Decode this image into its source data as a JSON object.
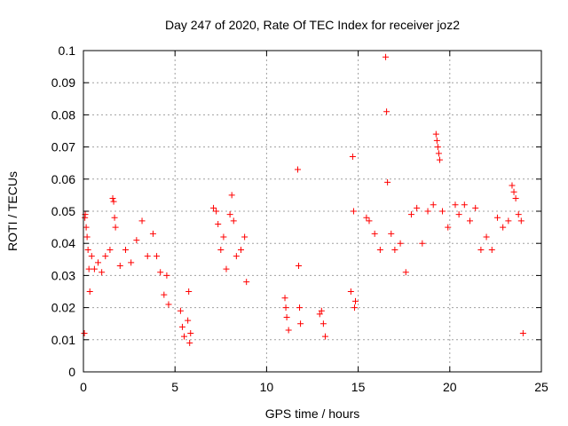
{
  "chart_data": {
    "type": "scatter",
    "title": "Day 247 of 2020, Rate Of TEC Index for receiver joz2",
    "xlabel": "GPS time / hours",
    "ylabel": "ROTI / TECUs",
    "xlim": [
      0,
      25
    ],
    "ylim": [
      0,
      0.1
    ],
    "xticks": [
      "0",
      "5",
      "10",
      "15",
      "20",
      "25"
    ],
    "yticks": [
      "0",
      "0.01",
      "0.02",
      "0.03",
      "0.04",
      "0.05",
      "0.06",
      "0.07",
      "0.08",
      "0.09",
      "0.1"
    ],
    "grid": true,
    "marker": "+",
    "color": "#ff0000",
    "series": [
      {
        "points": [
          [
            0.05,
            0.012
          ],
          [
            0.08,
            0.048
          ],
          [
            0.1,
            0.049
          ],
          [
            0.15,
            0.045
          ],
          [
            0.2,
            0.042
          ],
          [
            0.25,
            0.038
          ],
          [
            0.3,
            0.032
          ],
          [
            0.35,
            0.025
          ],
          [
            0.45,
            0.036
          ],
          [
            0.6,
            0.032
          ],
          [
            0.8,
            0.034
          ],
          [
            1.0,
            0.031
          ],
          [
            1.2,
            0.036
          ],
          [
            1.45,
            0.038
          ],
          [
            1.6,
            0.054
          ],
          [
            1.65,
            0.053
          ],
          [
            1.7,
            0.048
          ],
          [
            1.75,
            0.045
          ],
          [
            2.0,
            0.033
          ],
          [
            2.3,
            0.038
          ],
          [
            2.6,
            0.034
          ],
          [
            2.9,
            0.041
          ],
          [
            3.2,
            0.047
          ],
          [
            3.5,
            0.036
          ],
          [
            3.8,
            0.043
          ],
          [
            4.0,
            0.036
          ],
          [
            4.2,
            0.031
          ],
          [
            4.4,
            0.024
          ],
          [
            4.55,
            0.03
          ],
          [
            4.65,
            0.021
          ],
          [
            5.3,
            0.019
          ],
          [
            5.4,
            0.014
          ],
          [
            5.5,
            0.011
          ],
          [
            5.7,
            0.016
          ],
          [
            5.75,
            0.025
          ],
          [
            5.8,
            0.009
          ],
          [
            5.85,
            0.012
          ],
          [
            7.1,
            0.051
          ],
          [
            7.25,
            0.05
          ],
          [
            7.35,
            0.046
          ],
          [
            7.5,
            0.038
          ],
          [
            7.65,
            0.042
          ],
          [
            7.8,
            0.032
          ],
          [
            8.0,
            0.049
          ],
          [
            8.1,
            0.055
          ],
          [
            8.2,
            0.047
          ],
          [
            8.35,
            0.036
          ],
          [
            8.6,
            0.038
          ],
          [
            8.8,
            0.042
          ],
          [
            8.9,
            0.028
          ],
          [
            11.0,
            0.023
          ],
          [
            11.05,
            0.02
          ],
          [
            11.1,
            0.017
          ],
          [
            11.2,
            0.013
          ],
          [
            11.7,
            0.063
          ],
          [
            11.75,
            0.033
          ],
          [
            11.8,
            0.02
          ],
          [
            11.85,
            0.015
          ],
          [
            12.9,
            0.018
          ],
          [
            13.0,
            0.019
          ],
          [
            13.1,
            0.015
          ],
          [
            13.2,
            0.011
          ],
          [
            14.6,
            0.025
          ],
          [
            14.7,
            0.067
          ],
          [
            14.75,
            0.05
          ],
          [
            14.8,
            0.02
          ],
          [
            14.85,
            0.022
          ],
          [
            15.45,
            0.048
          ],
          [
            15.6,
            0.047
          ],
          [
            15.9,
            0.043
          ],
          [
            16.2,
            0.038
          ],
          [
            16.5,
            0.098
          ],
          [
            16.55,
            0.081
          ],
          [
            16.6,
            0.059
          ],
          [
            16.8,
            0.043
          ],
          [
            17.0,
            0.038
          ],
          [
            17.3,
            0.04
          ],
          [
            17.6,
            0.031
          ],
          [
            17.9,
            0.049
          ],
          [
            18.2,
            0.051
          ],
          [
            18.5,
            0.04
          ],
          [
            18.8,
            0.05
          ],
          [
            19.1,
            0.052
          ],
          [
            19.25,
            0.074
          ],
          [
            19.3,
            0.072
          ],
          [
            19.35,
            0.07
          ],
          [
            19.4,
            0.068
          ],
          [
            19.45,
            0.066
          ],
          [
            19.6,
            0.05
          ],
          [
            19.9,
            0.045
          ],
          [
            20.3,
            0.052
          ],
          [
            20.5,
            0.049
          ],
          [
            20.8,
            0.052
          ],
          [
            21.1,
            0.047
          ],
          [
            21.4,
            0.051
          ],
          [
            21.7,
            0.038
          ],
          [
            22.0,
            0.042
          ],
          [
            22.3,
            0.038
          ],
          [
            22.6,
            0.048
          ],
          [
            22.9,
            0.045
          ],
          [
            23.2,
            0.047
          ],
          [
            23.4,
            0.058
          ],
          [
            23.5,
            0.056
          ],
          [
            23.6,
            0.054
          ],
          [
            23.75,
            0.049
          ],
          [
            23.9,
            0.047
          ],
          [
            24.0,
            0.012
          ]
        ]
      }
    ]
  }
}
